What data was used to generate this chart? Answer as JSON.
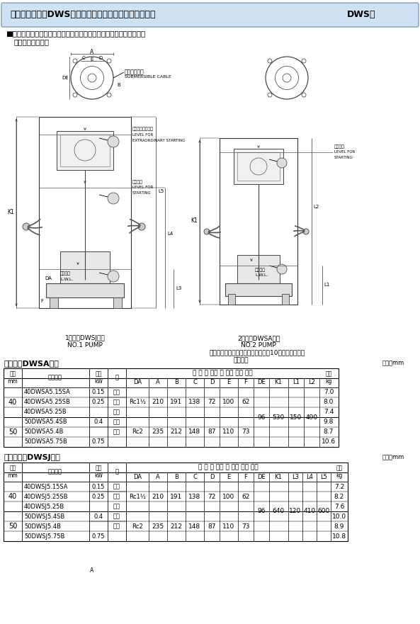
{
  "title_left": "【ダーウィン】DWS型樹脂製汚水・雑排水用水中ポンプ",
  "title_right": "DWS型",
  "subtitle1": "■外形寸法図　計画・実施に際しては納入仕様書をご請求ください。",
  "subtitle2": "自動形・自動互形",
  "note_line1": "注）停止水位での連続運転時間は、10分以内にしてく",
  "note_line2": "ださい。",
  "pump1_label1": "1号機（DWSJ型）",
  "pump1_label2": "NO.1 PUMP",
  "pump2_label1": "2号機（DWSA型）",
  "pump2_label2": "NO.2 PUMP",
  "cable_jp": "水中ケーブル",
  "cable_en": "SUBMERSIBLE CABLE",
  "lv_ex_jp": "異常増水始動水位",
  "lv_ex_en1": "LEVEL FOR",
  "lv_ex_en2": "EXTRAORDINARY STARTING",
  "lv_st1_jp": "始動水位",
  "lv_st1_en1": "LEVEL FOR",
  "lv_st1_en2": "STARTING",
  "lv_st2_jp": "始動水位",
  "lv_st2_en1": "LEVEL FOR",
  "lv_st2_en2": "STARTING",
  "lv_stop1_jp": "停止水位",
  "lv_stop1_en": "L.W.L.",
  "lv_stop2_jp": "停止水位",
  "lv_stop2_en": "L.W.L.",
  "table1_title": "自動形（DWSA型）",
  "table1_unit": "単位：mm",
  "table2_title": "自動互形（DWSJ型）",
  "table2_unit": "単位：mm",
  "hdr_kei": "口径",
  "hdr_mm": "mm",
  "hdr_name": "機　　名",
  "hdr_pow": "出力",
  "hdr_kw": "kW",
  "hdr_phase": "相",
  "hdr_pump": "ポ ン プ 　及 び 　電 　動 　機",
  "hdr_mass": "質量",
  "hdr_kg": "kg",
  "sub1": [
    "DA",
    "A",
    "B",
    "C",
    "D",
    "E",
    "F",
    "DE",
    "K1",
    "L1",
    "L2"
  ],
  "sub2": [
    "DA",
    "A",
    "B",
    "C",
    "D",
    "E",
    "F",
    "DE",
    "K1",
    "L3",
    "L4",
    "L5"
  ],
  "t1rows": [
    [
      "40DWSA5.15SA",
      "0.15",
      "単相",
      "Rc1½",
      "210",
      "191",
      "138",
      "72",
      "100",
      "62",
      "96",
      "530",
      "150",
      "490",
      "7.0"
    ],
    [
      "40DWSA5.25SB",
      "0.25",
      "単相",
      "",
      "",
      "",
      "",
      "",
      "",
      "",
      "",
      "",
      "",
      "",
      "8.0"
    ],
    [
      "40DWSA5.25B",
      "",
      "三相",
      "",
      "",
      "",
      "",
      "",
      "",
      "",
      "",
      "",
      "",
      "",
      "7.4"
    ],
    [
      "50DWSA5.4SB",
      "0.4",
      "単相",
      "Rc2",
      "235",
      "212",
      "148",
      "87",
      "110",
      "73",
      "",
      "",
      "",
      "",
      "9.8"
    ],
    [
      "50DWSA5.4B",
      "",
      "三相",
      "",
      "",
      "",
      "",
      "",
      "",
      "",
      "",
      "",
      "",
      "",
      "8.7"
    ],
    [
      "50DWSA5.75B",
      "0.75",
      "",
      "",
      "",
      "",
      "",
      "",
      "",
      "",
      "",
      "",
      "",
      "",
      "10.6"
    ]
  ],
  "t2rows": [
    [
      "40DWSJ5.15SA",
      "0.15",
      "単相",
      "Rc1½",
      "210",
      "191",
      "138",
      "72",
      "100",
      "62",
      "96",
      "640",
      "120",
      "410",
      "600",
      "7.2"
    ],
    [
      "40DWSJ5.25SB",
      "0.25",
      "単相",
      "",
      "",
      "",
      "",
      "",
      "",
      "",
      "",
      "",
      "",
      "",
      "",
      "",
      "8.2"
    ],
    [
      "40DWSJ5.25B",
      "",
      "三相",
      "",
      "",
      "",
      "",
      "",
      "",
      "",
      "",
      "",
      "",
      "",
      "",
      "",
      "7.6"
    ],
    [
      "50DWSJ5.4SB",
      "0.4",
      "単相",
      "Rc2",
      "235",
      "212",
      "148",
      "87",
      "110",
      "73",
      "",
      "",
      "",
      "",
      "",
      "",
      "10.0"
    ],
    [
      "50DWSJ5.4B",
      "",
      "三相",
      "",
      "",
      "",
      "",
      "",
      "",
      "",
      "",
      "",
      "",
      "",
      "",
      "",
      "8.9"
    ],
    [
      "50DWSJ5.75B",
      "0.75",
      "",
      "",
      "",
      "",
      "",
      "",
      "",
      "",
      "",
      "",
      "",
      "",
      "",
      "",
      "10.8"
    ]
  ]
}
